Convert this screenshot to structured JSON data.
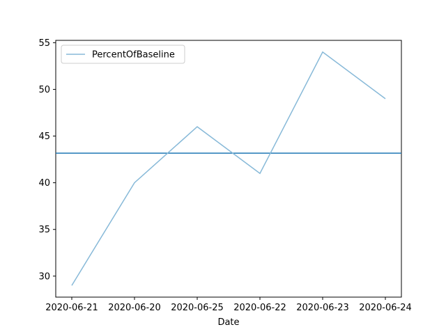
{
  "chart_data": {
    "type": "line",
    "categories": [
      "2020-06-21",
      "2020-06-20",
      "2020-06-25",
      "2020-06-22",
      "2020-06-23",
      "2020-06-24"
    ],
    "series": [
      {
        "name": "PercentOfBaseline",
        "values": [
          29,
          40,
          46,
          41,
          54,
          49
        ],
        "color": "#87b9d8"
      }
    ],
    "reference_line": {
      "value": 43.17,
      "color": "#1f77b4"
    },
    "xlabel": "Date",
    "ylabel": "",
    "ylim": [
      27.75,
      55.25
    ],
    "yticks": [
      30,
      35,
      40,
      45,
      50,
      55
    ],
    "legend_position": "top-left",
    "grid": false
  }
}
